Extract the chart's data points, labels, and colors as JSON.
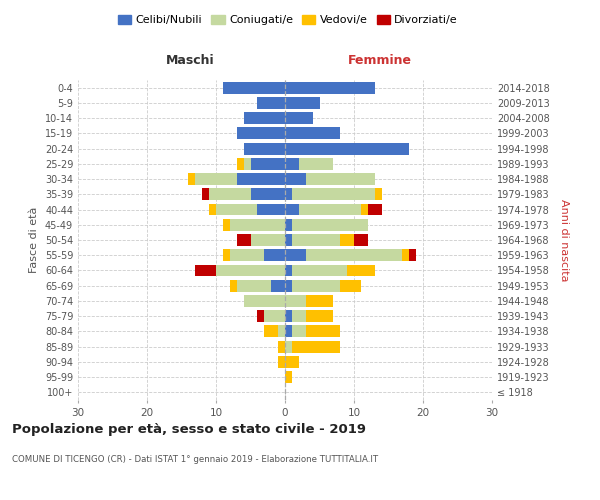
{
  "age_groups": [
    "100+",
    "95-99",
    "90-94",
    "85-89",
    "80-84",
    "75-79",
    "70-74",
    "65-69",
    "60-64",
    "55-59",
    "50-54",
    "45-49",
    "40-44",
    "35-39",
    "30-34",
    "25-29",
    "20-24",
    "15-19",
    "10-14",
    "5-9",
    "0-4"
  ],
  "birth_years": [
    "≤ 1918",
    "1919-1923",
    "1924-1928",
    "1929-1933",
    "1934-1938",
    "1939-1943",
    "1944-1948",
    "1949-1953",
    "1954-1958",
    "1959-1963",
    "1964-1968",
    "1969-1973",
    "1974-1978",
    "1979-1983",
    "1984-1988",
    "1989-1993",
    "1994-1998",
    "1999-2003",
    "2004-2008",
    "2009-2013",
    "2014-2018"
  ],
  "male": {
    "celibi": [
      0,
      0,
      0,
      0,
      0,
      0,
      0,
      2,
      0,
      3,
      0,
      0,
      4,
      5,
      7,
      5,
      6,
      7,
      6,
      4,
      9
    ],
    "coniugati": [
      0,
      0,
      0,
      0,
      1,
      3,
      6,
      5,
      10,
      5,
      5,
      8,
      6,
      6,
      6,
      1,
      0,
      0,
      0,
      0,
      0
    ],
    "vedovi": [
      0,
      0,
      1,
      1,
      2,
      0,
      0,
      1,
      0,
      1,
      0,
      1,
      1,
      0,
      1,
      1,
      0,
      0,
      0,
      0,
      0
    ],
    "divorziati": [
      0,
      0,
      0,
      0,
      0,
      1,
      0,
      0,
      3,
      0,
      2,
      0,
      0,
      1,
      0,
      0,
      0,
      0,
      0,
      0,
      0
    ]
  },
  "female": {
    "nubili": [
      0,
      0,
      0,
      0,
      1,
      1,
      0,
      1,
      1,
      3,
      1,
      1,
      2,
      1,
      3,
      2,
      18,
      8,
      4,
      5,
      13
    ],
    "coniugate": [
      0,
      0,
      0,
      1,
      2,
      2,
      3,
      7,
      8,
      14,
      7,
      11,
      9,
      12,
      10,
      5,
      0,
      0,
      0,
      0,
      0
    ],
    "vedove": [
      0,
      1,
      2,
      7,
      5,
      4,
      4,
      3,
      4,
      1,
      2,
      0,
      1,
      1,
      0,
      0,
      0,
      0,
      0,
      0,
      0
    ],
    "divorziate": [
      0,
      0,
      0,
      0,
      0,
      0,
      0,
      0,
      0,
      1,
      2,
      0,
      2,
      0,
      0,
      0,
      0,
      0,
      0,
      0,
      0
    ]
  },
  "colors": {
    "celibi": "#4472C4",
    "coniugati": "#c5d9a0",
    "vedovi": "#ffc000",
    "divorziati": "#c00000"
  },
  "xlim": 30,
  "title": "Popolazione per età, sesso e stato civile - 2019",
  "subtitle": "COMUNE DI TICENGO (CR) - Dati ISTAT 1° gennaio 2019 - Elaborazione TUTTITALIA.IT",
  "xlabel_left": "Maschi",
  "xlabel_right": "Femmine",
  "ylabel_left": "Fasce di età",
  "ylabel_right": "Anni di nascita",
  "legend_labels": [
    "Celibi/Nubili",
    "Coniugati/e",
    "Vedovi/e",
    "Divorziati/e"
  ]
}
